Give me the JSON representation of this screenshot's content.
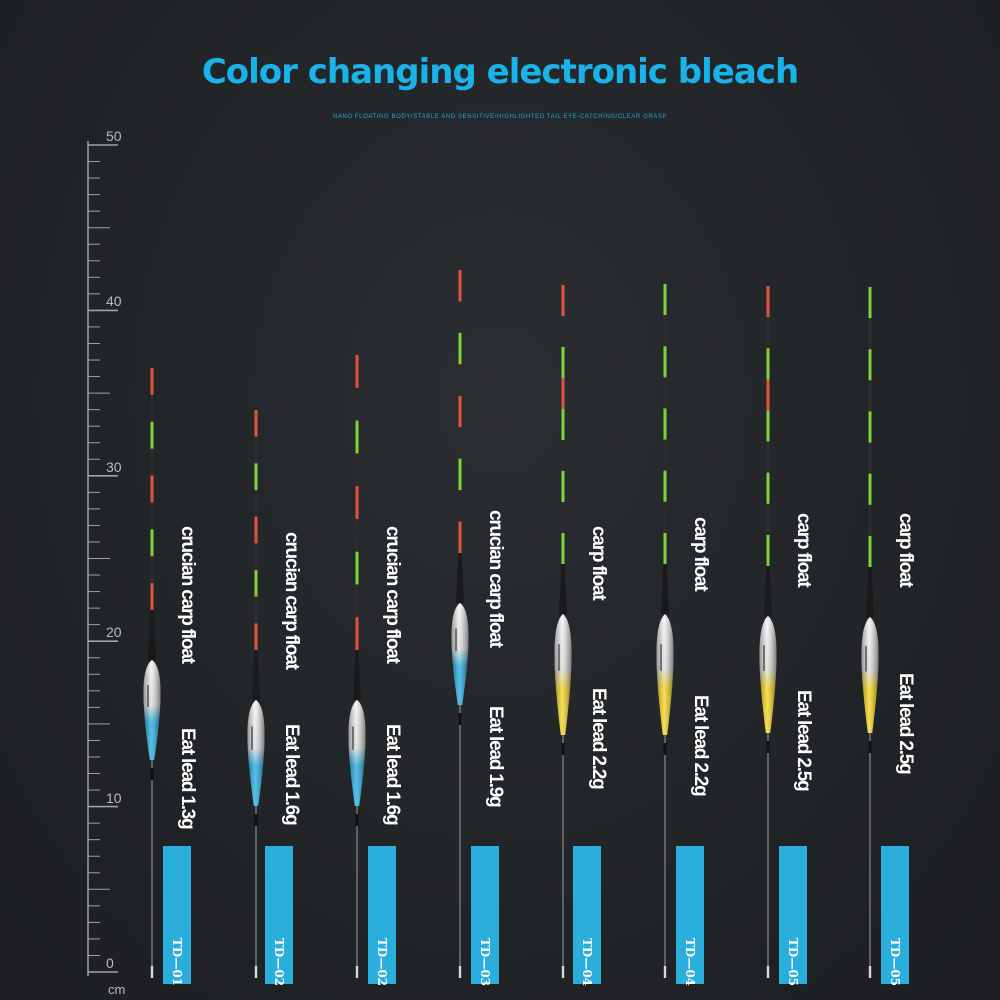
{
  "header": {
    "title": "Color changing electronic bleach",
    "subtitle": "NANO FLOATING BODY/STABLE AND SENSITIVE/HIGHLIGHTED TAIL EYE-CATCHING/CLEAR GRASP"
  },
  "ruler": {
    "labels": [
      "50",
      "40",
      "30",
      "20",
      "10",
      "0"
    ],
    "unit": "cm"
  },
  "floats": [
    {
      "name": "crucian carp float",
      "lead": "Eat lead 1.3g",
      "model": "TD—01",
      "body_color": "#1fa8e0"
    },
    {
      "name": "crucian carp float",
      "lead": "Eat lead 1.6g",
      "model": "TD—02",
      "body_color": "#1fa8e0"
    },
    {
      "name": "crucian carp float",
      "lead": "Eat lead 1.6g",
      "model": "TD—02",
      "body_color": "#1fa8e0"
    },
    {
      "name": "crucian carp float",
      "lead": "Eat lead 1.9g",
      "model": "TD—03",
      "body_color": "#1fa8e0"
    },
    {
      "name": "carp float",
      "lead": "Eat lead 2.2g",
      "model": "TD—04",
      "body_color": "#f2d21a"
    },
    {
      "name": "carp float",
      "lead": "Eat lead 2.2g",
      "model": "TD—04",
      "body_color": "#f2d21a"
    },
    {
      "name": "carp float",
      "lead": "Eat lead 2.5g",
      "model": "TD—05",
      "body_color": "#f2d21a"
    },
    {
      "name": "carp float",
      "lead": "Eat lead 2.5g",
      "model": "TD—05",
      "body_color": "#f2d21a"
    }
  ],
  "colors": {
    "title": "#19b3ea",
    "tag": "#2aaedc",
    "tip_red": "#e0533d",
    "tip_green": "#7ed33a"
  }
}
